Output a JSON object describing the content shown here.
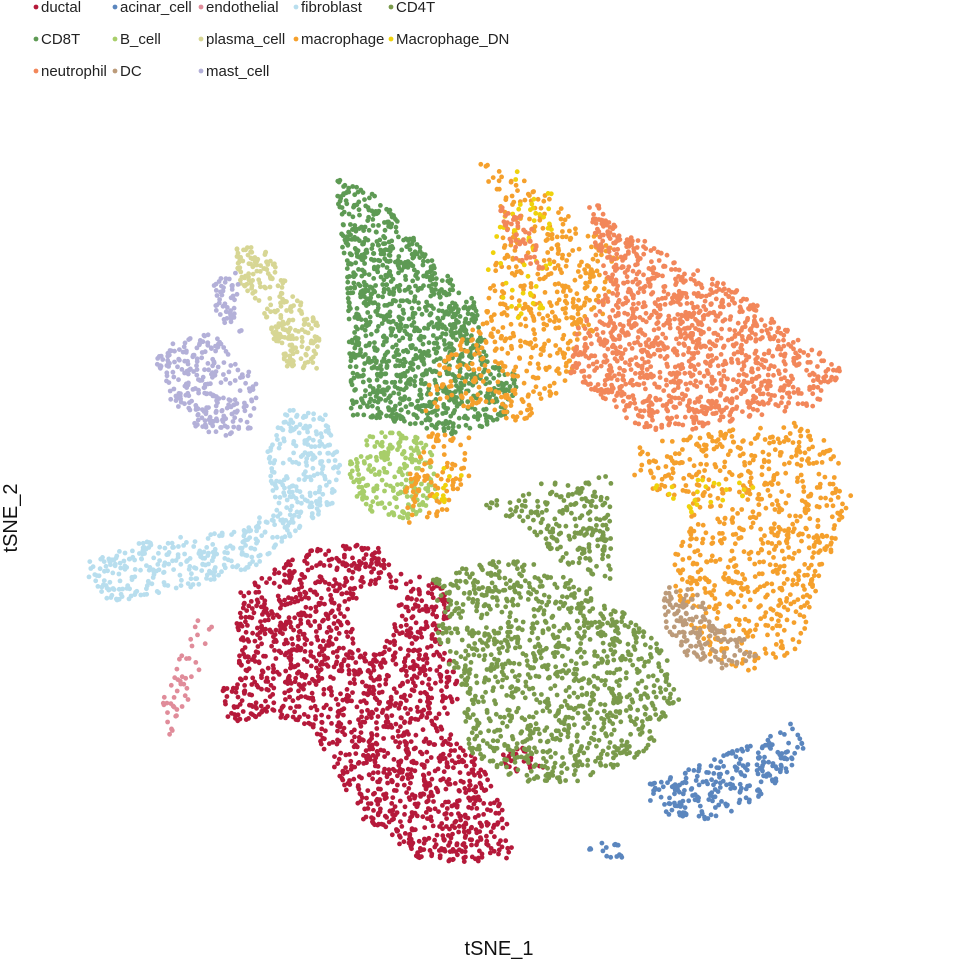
{
  "chart_data": {
    "type": "scatter",
    "title": "",
    "xlabel": "tSNE_1",
    "ylabel": "tSNE_2",
    "grid": false,
    "axes_visible": false,
    "legend_placement": "top-left",
    "series": [
      {
        "name": "ductal",
        "color": "#B5193A",
        "count": 1700,
        "x_range": [
          -32,
          10
        ],
        "y_range": [
          -48,
          -10
        ]
      },
      {
        "name": "acinar_cell",
        "color": "#5B86BE",
        "count": 260,
        "x_range": [
          13,
          43
        ],
        "y_range": [
          -43,
          -27
        ]
      },
      {
        "name": "endothelial",
        "color": "#E08C9A",
        "count": 45,
        "x_range": [
          -46,
          -41
        ],
        "y_range": [
          -29,
          -14
        ]
      },
      {
        "name": "fibroblast",
        "color": "#B8DEEE",
        "count": 520,
        "x_range": [
          -52,
          -22
        ],
        "y_range": [
          -9,
          16
        ]
      },
      {
        "name": "CD4T",
        "color": "#7A9A4B",
        "count": 1300,
        "x_range": [
          -6,
          23
        ],
        "y_range": [
          -34,
          -4
        ]
      },
      {
        "name": "CD8T",
        "color": "#5E9A54",
        "count": 1200,
        "x_range": [
          -21,
          16
        ],
        "y_range": [
          -2,
          47
        ]
      },
      {
        "name": "B_cell",
        "color": "#A8CE6A",
        "count": 220,
        "x_range": [
          -19,
          -8
        ],
        "y_range": [
          5,
          17
        ]
      },
      {
        "name": "plasma_cell",
        "color": "#D7D694",
        "count": 240,
        "x_range": [
          -35,
          -23
        ],
        "y_range": [
          26,
          43
        ]
      },
      {
        "name": "macrophage",
        "color": "#F5A02C",
        "count": 1350,
        "x_range": [
          -11,
          48
        ],
        "y_range": [
          -19,
          49
        ]
      },
      {
        "name": "Macrophage_DN",
        "color": "#EFD20C",
        "count": 90,
        "x_range": [
          -10,
          21
        ],
        "y_range": [
          -1,
          46
        ]
      },
      {
        "name": "neutrophil",
        "color": "#F2875A",
        "count": 1300,
        "x_range": [
          9,
          42
        ],
        "y_range": [
          15,
          44
        ]
      },
      {
        "name": "DC",
        "color": "#BC9B7A",
        "count": 150,
        "x_range": [
          23,
          34
        ],
        "y_range": [
          -18,
          -8
        ]
      },
      {
        "name": "mast_cell",
        "color": "#B3B0D8",
        "count": 300,
        "x_range": [
          -45,
          -33
        ],
        "y_range": [
          12,
          33
        ]
      }
    ]
  }
}
